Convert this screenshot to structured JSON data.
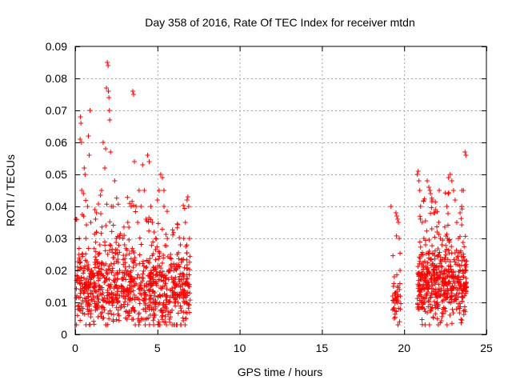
{
  "chart_data": {
    "type": "scatter",
    "title": "Day 358 of 2016, Rate Of TEC Index for receiver mtdn",
    "xlabel": "GPS time / hours",
    "ylabel": "ROTI / TECUs",
    "xlim": [
      0,
      25
    ],
    "ylim": [
      0,
      0.09
    ],
    "xticks": [
      0,
      5,
      10,
      15,
      20,
      25
    ],
    "yticks": [
      0,
      0.01,
      0.02,
      0.03,
      0.04,
      0.05,
      0.06,
      0.07,
      0.08,
      0.09
    ],
    "xtick_labels": [
      "0",
      "5",
      "10",
      "15",
      "20",
      "25"
    ],
    "ytick_labels": [
      "0",
      "0.01",
      "0.02",
      "0.03",
      "0.04",
      "0.05",
      "0.06",
      "0.07",
      "0.08",
      "0.09"
    ],
    "grid": true,
    "marker": "+",
    "color": "#ff0000",
    "series": [
      {
        "points": [
          [
            0.05,
            0.036
          ],
          [
            0.1,
            0.012
          ],
          [
            0.15,
            0.02
          ],
          [
            0.2,
            0.009
          ],
          [
            0.25,
            0.03
          ],
          [
            0.3,
            0.061
          ],
          [
            0.32,
            0.068
          ],
          [
            0.35,
            0.066
          ],
          [
            0.38,
            0.06
          ],
          [
            0.4,
            0.045
          ],
          [
            0.42,
            0.025
          ],
          [
            0.45,
            0.015
          ],
          [
            0.5,
            0.044
          ],
          [
            0.55,
            0.052
          ],
          [
            0.6,
            0.05
          ],
          [
            0.65,
            0.03
          ],
          [
            0.7,
            0.014
          ],
          [
            0.75,
            0.04
          ],
          [
            0.8,
            0.062
          ],
          [
            0.85,
            0.056
          ],
          [
            0.9,
            0.07
          ],
          [
            0.95,
            0.035
          ],
          [
            1.0,
            0.02
          ],
          [
            1.1,
            0.018
          ],
          [
            1.2,
            0.039
          ],
          [
            1.3,
            0.038
          ],
          [
            1.4,
            0.025
          ],
          [
            1.5,
            0.028
          ],
          [
            1.6,
            0.045
          ],
          [
            1.7,
            0.06
          ],
          [
            1.8,
            0.052
          ],
          [
            1.85,
            0.058
          ],
          [
            1.9,
            0.077
          ],
          [
            1.95,
            0.085
          ],
          [
            2.0,
            0.084
          ],
          [
            2.02,
            0.076
          ],
          [
            2.05,
            0.074
          ],
          [
            2.08,
            0.07
          ],
          [
            2.1,
            0.067
          ],
          [
            2.15,
            0.057
          ],
          [
            2.2,
            0.04
          ],
          [
            2.3,
            0.04
          ],
          [
            2.4,
            0.048
          ],
          [
            2.5,
            0.03
          ],
          [
            2.6,
            0.025
          ],
          [
            2.7,
            0.02
          ],
          [
            2.8,
            0.015
          ],
          [
            2.9,
            0.03
          ],
          [
            3.0,
            0.028
          ],
          [
            3.2,
            0.035
          ],
          [
            3.4,
            0.04
          ],
          [
            3.5,
            0.076
          ],
          [
            3.55,
            0.075
          ],
          [
            3.6,
            0.054
          ],
          [
            3.7,
            0.04
          ],
          [
            3.8,
            0.035
          ],
          [
            4.0,
            0.04
          ],
          [
            4.1,
            0.053
          ],
          [
            4.2,
            0.045
          ],
          [
            4.3,
            0.036
          ],
          [
            4.4,
            0.056
          ],
          [
            4.5,
            0.054
          ],
          [
            4.6,
            0.04
          ],
          [
            4.7,
            0.035
          ],
          [
            4.8,
            0.032
          ],
          [
            4.9,
            0.03
          ],
          [
            5.0,
            0.042
          ],
          [
            5.1,
            0.045
          ],
          [
            5.2,
            0.05
          ],
          [
            5.3,
            0.049
          ],
          [
            5.4,
            0.04
          ],
          [
            5.6,
            0.03
          ],
          [
            5.8,
            0.025
          ],
          [
            6.0,
            0.02
          ],
          [
            6.2,
            0.025
          ],
          [
            6.4,
            0.028
          ],
          [
            6.6,
            0.03
          ],
          [
            6.7,
            0.035
          ],
          [
            6.8,
            0.042
          ],
          [
            6.85,
            0.043
          ],
          [
            6.9,
            0.04
          ],
          [
            6.95,
            0.03
          ],
          [
            19.2,
            0.04
          ],
          [
            19.3,
            0.012
          ],
          [
            19.35,
            0.015
          ],
          [
            19.4,
            0.018
          ],
          [
            19.5,
            0.038
          ],
          [
            19.55,
            0.037
          ],
          [
            19.6,
            0.036
          ],
          [
            19.65,
            0.035
          ],
          [
            19.7,
            0.03
          ],
          [
            19.75,
            0.02
          ],
          [
            20.8,
            0.05
          ],
          [
            20.85,
            0.051
          ],
          [
            20.9,
            0.048
          ],
          [
            20.95,
            0.045
          ],
          [
            21.0,
            0.04
          ],
          [
            21.1,
            0.035
          ],
          [
            21.2,
            0.03
          ],
          [
            21.3,
            0.028
          ],
          [
            21.4,
            0.048
          ],
          [
            21.5,
            0.046
          ],
          [
            21.6,
            0.044
          ],
          [
            21.7,
            0.042
          ],
          [
            21.8,
            0.038
          ],
          [
            21.9,
            0.039
          ],
          [
            22.0,
            0.032
          ],
          [
            22.1,
            0.025
          ],
          [
            22.2,
            0.03
          ],
          [
            22.3,
            0.028
          ],
          [
            22.5,
            0.026
          ],
          [
            22.6,
            0.04
          ],
          [
            22.7,
            0.049
          ],
          [
            22.8,
            0.05
          ],
          [
            22.9,
            0.048
          ],
          [
            23.0,
            0.045
          ],
          [
            23.1,
            0.042
          ],
          [
            23.2,
            0.035
          ],
          [
            23.3,
            0.03
          ],
          [
            23.4,
            0.038
          ],
          [
            23.5,
            0.04
          ],
          [
            23.6,
            0.045
          ],
          [
            23.7,
            0.057
          ],
          [
            23.75,
            0.056
          ]
        ]
      }
    ]
  }
}
